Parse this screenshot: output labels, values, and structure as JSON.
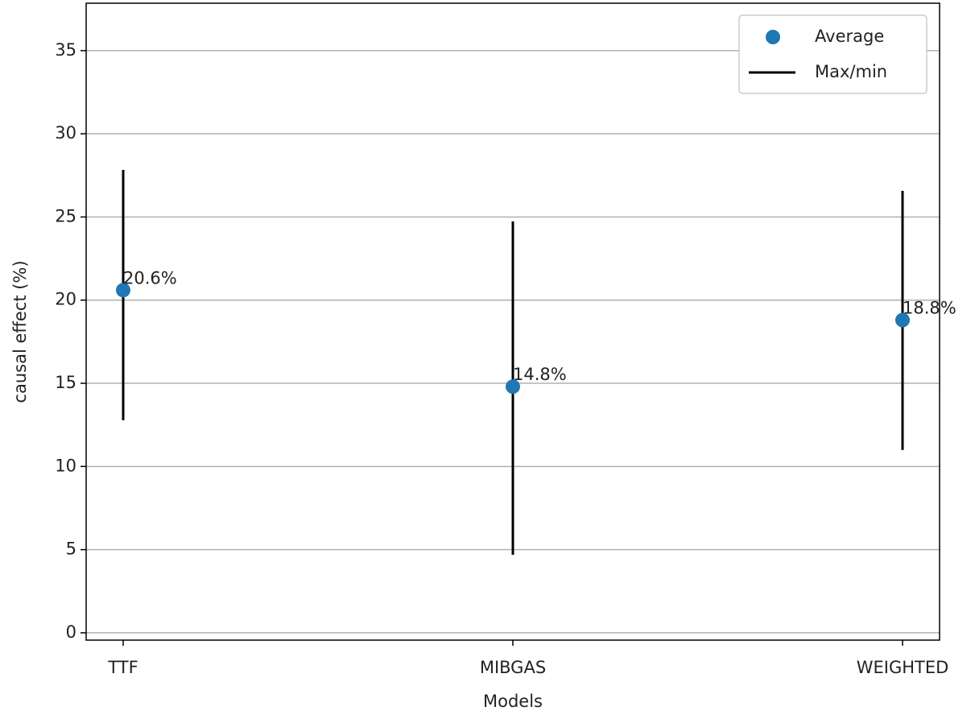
{
  "chart_data": {
    "type": "range-dot",
    "x_label": "Models",
    "y_label": "causal effect (%)",
    "categories": [
      "TTF",
      "MIBGAS",
      "WEIGHTED"
    ],
    "series": [
      {
        "name": "Average",
        "color": "#1f77b4",
        "values": [
          20.6,
          14.8,
          18.8
        ],
        "value_labels": [
          "20.6%",
          "14.8%",
          "18.8%"
        ]
      },
      {
        "name": "Max/min",
        "color": "#000000",
        "max": [
          27.83,
          24.73,
          26.57
        ],
        "min": [
          12.78,
          4.69,
          10.99
        ]
      }
    ],
    "ylim": [
      -0.44,
      37.85
    ],
    "yticks": [
      0,
      5,
      10,
      15,
      20,
      25,
      30,
      35
    ],
    "grid": true,
    "legend": "upper-right"
  }
}
